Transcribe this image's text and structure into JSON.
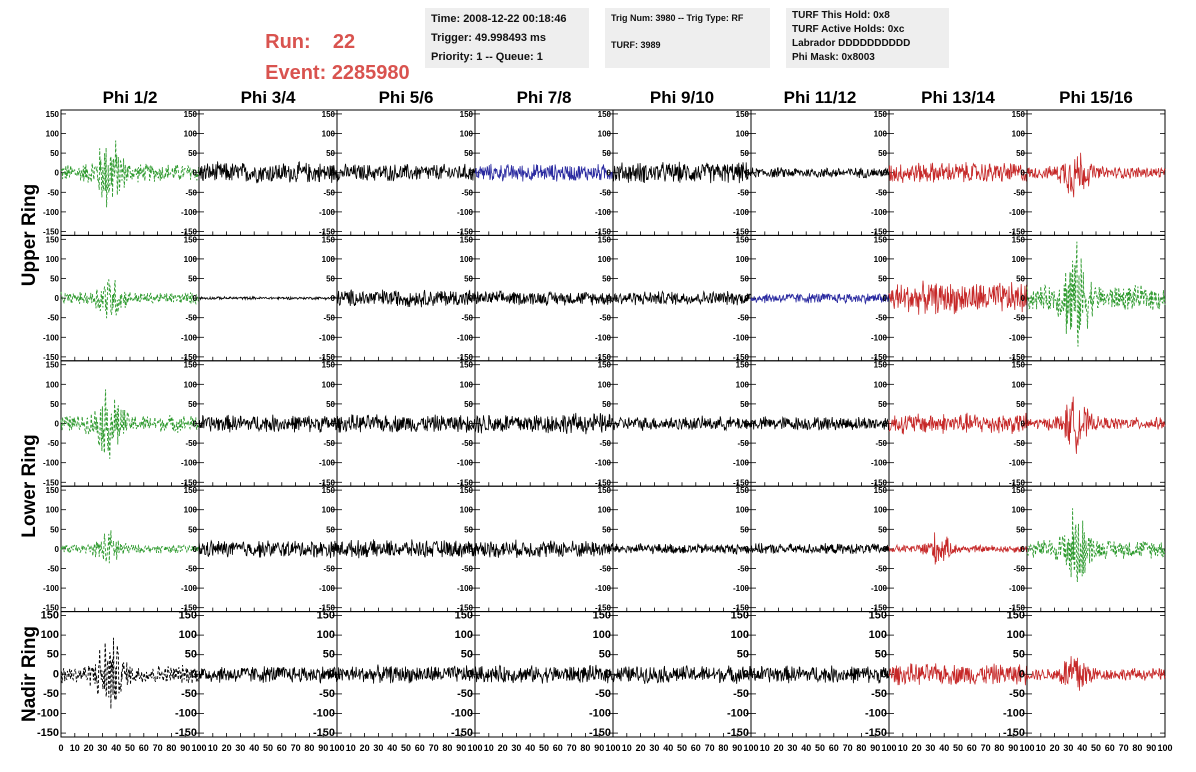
{
  "header": {
    "run_label": "Run:",
    "run_value": "22",
    "event_label": "Event:",
    "event_value": "2285980",
    "box1": [
      "Time: 2008-12-22 00:18:46",
      "Trigger: 49.998493 ms",
      "Priority: 1 -- Queue: 1"
    ],
    "box2": [
      "Trig Num: 3980 -- Trig Type: RF",
      "TURF: 3989"
    ],
    "box3": [
      "TURF This Hold: 0x8",
      "TURF Active Holds: 0xc",
      "Labrador DDDDDDDDDD",
      "Phi Mask: 0x8003"
    ]
  },
  "columns": [
    "Phi 1/2",
    "Phi 3/4",
    "Phi 5/6",
    "Phi 7/8",
    "Phi 9/10",
    "Phi 11/12",
    "Phi 13/14",
    "Phi 15/16"
  ],
  "rings": [
    {
      "label": "Upper Ring",
      "span": [
        0,
        1
      ]
    },
    {
      "label": "Lower Ring",
      "span": [
        2,
        3
      ]
    },
    {
      "label": "Nadir Ring",
      "span": [
        4,
        4
      ]
    }
  ],
  "axes": {
    "y_ticks": [
      "150",
      "100",
      "50",
      "0",
      "-50",
      "-100",
      "-150"
    ],
    "x_ticks": [
      "0",
      "10",
      "20",
      "30",
      "40",
      "50",
      "60",
      "70",
      "80",
      "90",
      "100"
    ],
    "ylim": [
      -160,
      160
    ],
    "xlim": [
      0,
      100
    ]
  },
  "colors": {
    "black": "#000000",
    "green": "#2e9a2e",
    "blue": "#2a2aa0",
    "red": "#c62828"
  },
  "chart_data": {
    "type": "line",
    "rows": 5,
    "cols": 8,
    "styles": [
      [
        "green-dash",
        "black",
        "black",
        "blue",
        "black",
        "black",
        "red",
        "red"
      ],
      [
        "green-dash",
        "black",
        "black",
        "black",
        "black",
        "blue",
        "red",
        "green-dash"
      ],
      [
        "green-dash",
        "black",
        "black",
        "black",
        "black",
        "black",
        "red",
        "red"
      ],
      [
        "green-dash",
        "black",
        "black",
        "black",
        "black",
        "black",
        "red",
        "green-dash"
      ],
      [
        "black-dash",
        "black",
        "black",
        "black",
        "black",
        "black",
        "red",
        "red"
      ]
    ],
    "amplitudes": [
      [
        120,
        30,
        25,
        25,
        30,
        15,
        30,
        80
      ],
      [
        75,
        4,
        25,
        20,
        20,
        15,
        45,
        160
      ],
      [
        110,
        25,
        25,
        30,
        20,
        20,
        30,
        80
      ],
      [
        55,
        25,
        25,
        25,
        15,
        15,
        50,
        120
      ],
      [
        120,
        25,
        25,
        25,
        25,
        25,
        30,
        80
      ]
    ],
    "pulse_center_x": 35
  }
}
